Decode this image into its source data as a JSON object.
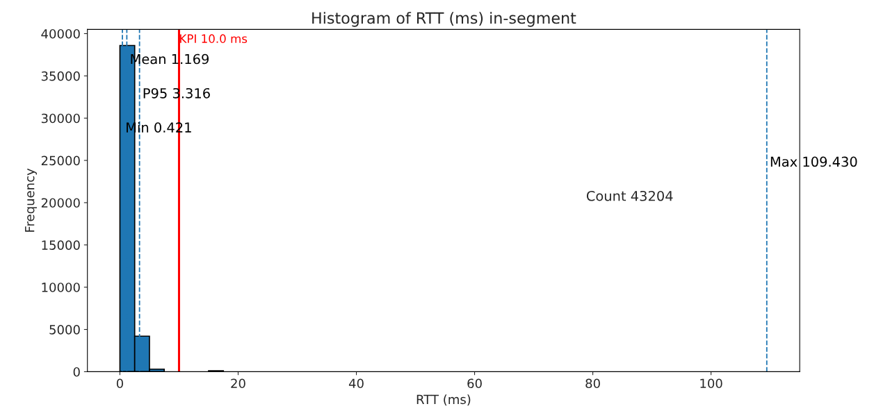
{
  "chart_data": {
    "type": "histogram",
    "title": "Histogram of RTT (ms) in-segment",
    "xlabel": "RTT (ms)",
    "ylabel": "Frequency",
    "bins": [
      0,
      2.5,
      5,
      7.5,
      10,
      12.5,
      15,
      17.5
    ],
    "values": [
      38600,
      4200,
      300,
      0,
      0,
      0,
      100
    ],
    "color": "#1f77b4",
    "xlim": [
      -5.5,
      115
    ],
    "xticks": [
      0,
      20,
      40,
      60,
      80,
      100
    ],
    "ylim": [
      0,
      40500
    ],
    "yticks": [
      0,
      5000,
      10000,
      15000,
      20000,
      25000,
      30000,
      35000,
      40000
    ],
    "grid": false,
    "ref_lines": [
      {
        "axis": "x",
        "value": 0.421,
        "label": "Min 0.421",
        "color": "#1f77b4",
        "line_style": "dashed"
      },
      {
        "axis": "x",
        "value": 1.169,
        "label": "Mean 1.169",
        "color": "#1f77b4",
        "line_style": "dashed"
      },
      {
        "axis": "x",
        "value": 3.316,
        "label": "P95 3.316",
        "color": "#1f77b4",
        "line_style": "dashed"
      },
      {
        "axis": "x",
        "value": 109.43,
        "label": "Max 109.430",
        "color": "#1f77b4",
        "line_style": "dashed"
      },
      {
        "axis": "x",
        "value": 10.0,
        "label": "KPI 10.0 ms",
        "color": "#ff0000",
        "line_style": "solid"
      }
    ],
    "annotations": [
      "Count 43204"
    ]
  }
}
